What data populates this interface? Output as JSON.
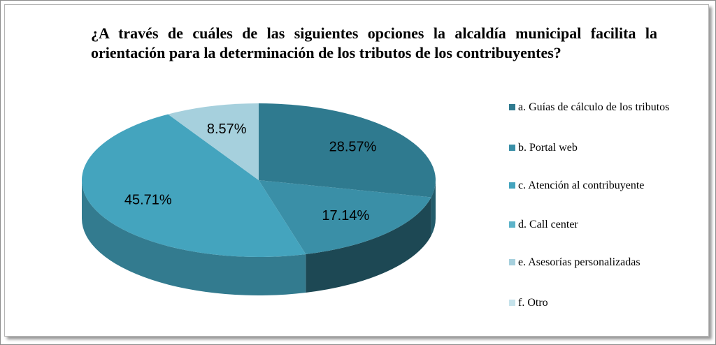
{
  "chart_data": {
    "type": "pie3d",
    "title": "¿A través de cuáles de las siguientes opciones la alcaldía municipal facilita la orientación para la determinación de los tributos de los contribuyentes?",
    "categories": [
      "a. Guías de cálculo de los tributos",
      "b. Portal web",
      "c. Atención al contribuyente",
      "d. Call center",
      "e. Asesorías personalizadas",
      "f. Otro"
    ],
    "values": [
      28.57,
      17.14,
      45.71,
      0,
      8.57,
      0
    ],
    "value_labels": [
      "28.57%",
      "17.14%",
      "45.71%",
      null,
      "8.57%",
      null
    ],
    "colors": [
      "#2f7a8f",
      "#3a8fa7",
      "#44a4be",
      "#5db3c9",
      "#a6d0dd",
      "#c6e3eb"
    ],
    "legend": "right"
  }
}
